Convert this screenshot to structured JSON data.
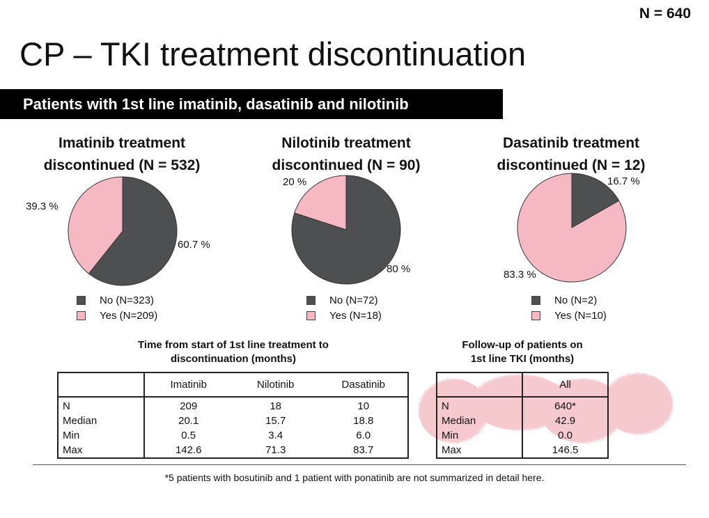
{
  "header": {
    "n_total": "N = 640"
  },
  "title": "CP – TKI treatment discontinuation",
  "banner": "Patients with 1st line imatinib, dasatinib and nilotinib",
  "colors": {
    "no": "#4d4f51",
    "yes": "#f6b9c4",
    "banner_bg": "#000000"
  },
  "chart_data": [
    {
      "type": "pie",
      "title": [
        "Imatinib treatment",
        "discontinued (N = 532)"
      ],
      "slices": [
        {
          "category": "No",
          "value": 60.7,
          "label": "60.7 %"
        },
        {
          "category": "Yes",
          "value": 39.3,
          "label": "39.3 %"
        }
      ],
      "legend": [
        "No (N=323)",
        "Yes (N=209)"
      ]
    },
    {
      "type": "pie",
      "title": [
        "Nilotinib treatment",
        "discontinued (N = 90)"
      ],
      "slices": [
        {
          "category": "No",
          "value": 80,
          "label": "80 %"
        },
        {
          "category": "Yes",
          "value": 20,
          "label": "20 %"
        }
      ],
      "legend": [
        "No (N=72)",
        "Yes (N=18)"
      ]
    },
    {
      "type": "pie",
      "title": [
        "Dasatinib treatment",
        "discontinued (N = 12)"
      ],
      "slices": [
        {
          "category": "No",
          "value": 16.7,
          "label": "16.7 %"
        },
        {
          "category": "Yes",
          "value": 83.3,
          "label": "83.3 %"
        }
      ],
      "legend": [
        "No (N=2)",
        "Yes (N=10)"
      ]
    },
    {
      "type": "table",
      "title": [
        "Time from start of 1st line treatment to",
        "discontinuation (months)"
      ],
      "columns": [
        "",
        "Imatinib",
        "Nilotinib",
        "Dasatinib"
      ],
      "rows": [
        [
          "N",
          "209",
          "18",
          "10"
        ],
        [
          "Median",
          "20.1",
          "15.7",
          "18.8"
        ],
        [
          "Min",
          "0.5",
          "3.4",
          "6.0"
        ],
        [
          "Max",
          "142.6",
          "71.3",
          "83.7"
        ]
      ]
    },
    {
      "type": "table",
      "title": [
        "Follow-up of patients on",
        "1st line TKI (months)"
      ],
      "columns": [
        "",
        "All"
      ],
      "rows": [
        [
          "N",
          "640*"
        ],
        [
          "Median",
          "42.9"
        ],
        [
          "Min",
          "0.0"
        ],
        [
          "Max",
          "146.5"
        ]
      ]
    }
  ],
  "footnote": "*5 patients with bosutinib and 1 patient with ponatinib are not summarized in detail here."
}
